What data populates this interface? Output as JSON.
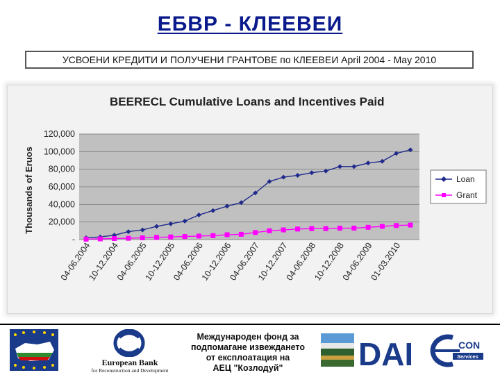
{
  "header": {
    "title": "ЕБВР - КЛЕЕВЕИ",
    "subtitle": "УСВОЕНИ КРЕДИТИ И ПОЛУЧЕНИ ГРАНТОВЕ по КЛЕЕВЕИ April 2004 - May 2010"
  },
  "chart_data": {
    "type": "line",
    "title": "BEERECL Cumulative Loans and Incentives Paid",
    "ylabel": "Thousands of Eruos",
    "xlabel": "",
    "ylim": [
      0,
      120000
    ],
    "yticks": [
      "120,000",
      "100,000",
      "80,000",
      "60,000",
      "40,000",
      "20,000",
      "-"
    ],
    "ytick_values": [
      120000,
      100000,
      80000,
      60000,
      40000,
      20000,
      0
    ],
    "x_tick_labels": [
      "04-06.2004",
      "10-12.2004",
      "04-06.2005",
      "10-12.2005",
      "04-06.2006",
      "10-12.2006",
      "04-06.2007",
      "10-12.2007",
      "04-06.2008",
      "10-12.2008",
      "04-06.2009",
      "01-03.2010"
    ],
    "n_points": 24,
    "grid": "horizontal",
    "legend": "right",
    "series": [
      {
        "name": "Loan",
        "color": "#1f2a8c",
        "marker": "diamond",
        "values": [
          2000,
          3000,
          5000,
          9000,
          11000,
          15000,
          18000,
          21000,
          28000,
          33000,
          38000,
          42000,
          53000,
          66000,
          71000,
          73000,
          76000,
          78000,
          83000,
          83000,
          87000,
          89000,
          98000,
          102000
        ]
      },
      {
        "name": "Grant",
        "color": "#ff00ff",
        "marker": "square",
        "values": [
          500,
          800,
          1200,
          1500,
          2000,
          2500,
          3000,
          3500,
          4000,
          4500,
          5500,
          6000,
          8000,
          10000,
          11000,
          12000,
          12500,
          12500,
          13000,
          13000,
          14000,
          15000,
          16000,
          16500
        ]
      }
    ]
  },
  "footer": {
    "fund_text": [
      "Международен фонд за",
      "подпомагане извеждането",
      "от експлоатация на",
      "АЕЦ \"Козлодуй\""
    ],
    "ebrd_name": "European Bank",
    "ebrd_sub": "for Reconstruction and Development",
    "dai_text": "DAI",
    "encon_text": "CON",
    "encon_sub": "Services"
  }
}
